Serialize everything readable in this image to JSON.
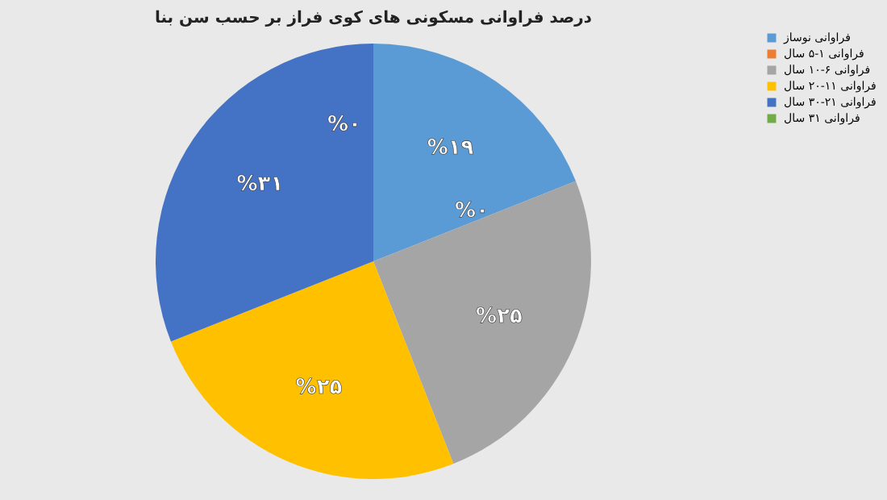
{
  "chart_data": {
    "type": "pie",
    "title": "درصد فراوانی مسکونی های کوی فراز بر حسب سن بنا",
    "categories": [
      "فراوانی نوساز",
      "فراوانی ۱-۵ سال",
      "فراوانی ۶-۱۰ سال",
      "فراوانی ۱۱-۲۰ سال",
      "فراوانی ۲۱-۳۰ سال",
      "فراوانی ۳۱ سال"
    ],
    "values": [
      19,
      0,
      25,
      25,
      31,
      0
    ],
    "value_labels": [
      "%۱۹",
      "%۰",
      "%۲۵",
      "%۲۵",
      "%۳۱",
      "%۰"
    ],
    "colors": [
      "#5b9bd5",
      "#ed7d31",
      "#a5a5a5",
      "#ffc000",
      "#4472c4",
      "#70ad47"
    ],
    "legend": "right"
  }
}
